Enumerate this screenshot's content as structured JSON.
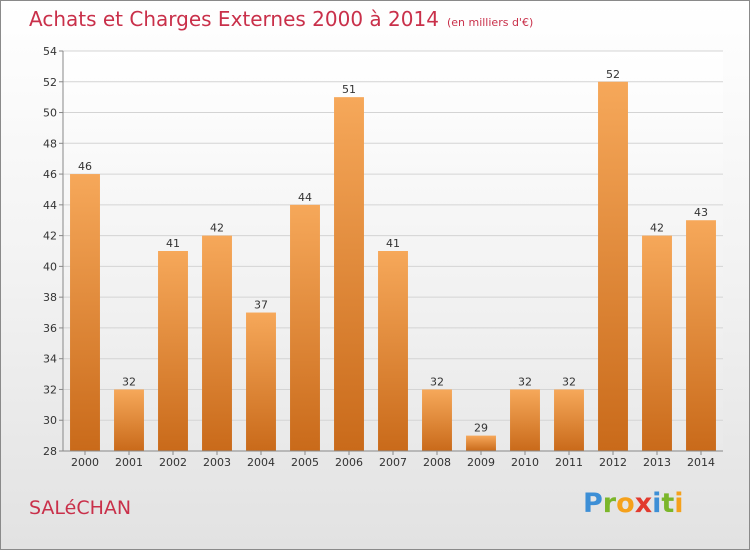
{
  "title": "Achats et Charges Externes 2000 à 2014",
  "subtitle": "(en milliers d'€)",
  "commune": "SALéCHAN",
  "logo": {
    "letters": [
      "P",
      "r",
      "o",
      "x",
      "i",
      "t",
      "i"
    ],
    "colors": [
      "#3d8fd6",
      "#7bb62a",
      "#f5a11b",
      "#e23a2e",
      "#3d8fd6",
      "#7bb62a",
      "#f5a11b"
    ]
  },
  "colors": {
    "bar_top": "#f6a85a",
    "bar_bottom": "#c96a1a",
    "title": "#c9304a"
  },
  "chart_data": {
    "type": "bar",
    "categories": [
      "2000",
      "2001",
      "2002",
      "2003",
      "2004",
      "2005",
      "2006",
      "2007",
      "2008",
      "2009",
      "2010",
      "2011",
      "2012",
      "2013",
      "2014"
    ],
    "values": [
      46,
      32,
      41,
      42,
      37,
      44,
      51,
      41,
      32,
      29,
      32,
      32,
      52,
      42,
      43
    ],
    "ylim": [
      28,
      54
    ],
    "yticks": [
      28,
      30,
      32,
      34,
      36,
      38,
      40,
      42,
      44,
      46,
      48,
      50,
      52,
      54
    ],
    "grid": true,
    "data_labels": true
  }
}
